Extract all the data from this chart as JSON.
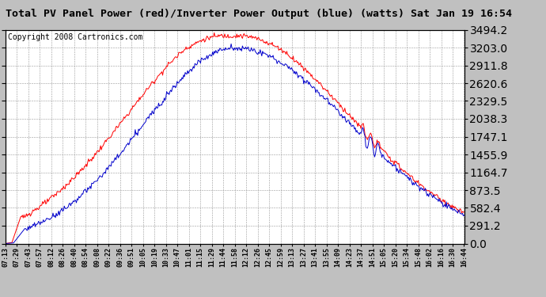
{
  "title": "Total PV Panel Power (red)/Inverter Power Output (blue) (watts) Sat Jan 19 16:54",
  "copyright": "Copyright 2008 Cartronics.com",
  "y_max": 3494.2,
  "y_ticks": [
    0.0,
    291.2,
    582.4,
    873.5,
    1164.7,
    1455.9,
    1747.1,
    2038.3,
    2329.5,
    2620.6,
    2911.8,
    3203.0,
    3494.2
  ],
  "background_color": "#c0c0c0",
  "plot_bg_color": "#ffffff",
  "red_color": "#ff0000",
  "blue_color": "#0000cc",
  "title_fontsize": 9.5,
  "copyright_fontsize": 7,
  "x_tick_labels": [
    "07:13",
    "07:29",
    "07:43",
    "07:57",
    "08:12",
    "08:26",
    "08:40",
    "08:54",
    "09:08",
    "09:22",
    "09:36",
    "09:51",
    "10:05",
    "10:19",
    "10:33",
    "10:47",
    "11:01",
    "11:15",
    "11:29",
    "11:44",
    "11:58",
    "12:12",
    "12:26",
    "12:45",
    "12:59",
    "13:13",
    "13:27",
    "13:41",
    "13:55",
    "14:09",
    "14:23",
    "14:37",
    "14:51",
    "15:05",
    "15:20",
    "15:34",
    "15:48",
    "16:02",
    "16:16",
    "16:30",
    "16:44"
  ]
}
